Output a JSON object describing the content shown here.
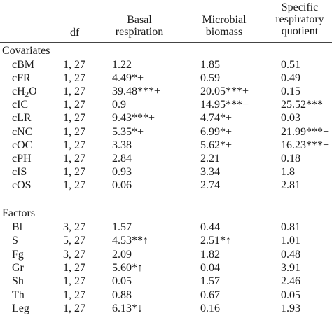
{
  "header": {
    "df": "df",
    "basal_line1": "Basal",
    "basal_line2": "respiration",
    "micro_line1": "Microbial",
    "micro_line2": "biomass",
    "sq_line1": "Specific",
    "sq_line2": "respiratory",
    "sq_line3": "quotient"
  },
  "sections": {
    "covariates": "Covariates",
    "factors": "Factors"
  },
  "covariates": [
    {
      "name": "cBM",
      "df": "1, 27",
      "br": "1.22",
      "mb": "1.85",
      "sq": "0.51"
    },
    {
      "name": "cFR",
      "df": "1, 27",
      "br": "4.49*+",
      "mb": "0.59",
      "sq": "0.49"
    },
    {
      "name": "cH",
      "name_sub": "2",
      "name_after": "O",
      "df": "1, 27",
      "br": "39.48***+",
      "mb": "20.05***+",
      "sq": "0.15"
    },
    {
      "name": "cIC",
      "df": "1, 27",
      "br": "0.9",
      "mb": "14.95***−",
      "sq": "25.52***+"
    },
    {
      "name": "cLR",
      "df": "1, 27",
      "br": "9.43***+",
      "mb": "4.74*+",
      "sq": "0.03"
    },
    {
      "name": "cNC",
      "df": "1, 27",
      "br": "5.35*+",
      "mb": "6.99*+",
      "sq": "21.99***−"
    },
    {
      "name": "cOC",
      "df": "1, 27",
      "br": "3.38",
      "mb": "5.62*+",
      "sq": "16.23***−"
    },
    {
      "name": "cPH",
      "df": "1, 27",
      "br": "2.84",
      "mb": "2.21",
      "sq": "0.18"
    },
    {
      "name": "cIS",
      "df": "1, 27",
      "br": "0.93",
      "mb": "3.34",
      "sq": "1.8"
    },
    {
      "name": "cOS",
      "df": "1, 27",
      "br": "0.06",
      "mb": "2.74",
      "sq": "2.81"
    }
  ],
  "factors": [
    {
      "name": "Bl",
      "df": "3, 27",
      "br": "1.57",
      "mb": "0.44",
      "sq": "0.81"
    },
    {
      "name": "S",
      "df": "5, 27",
      "br": "4.53**↑",
      "mb": "2.51*↑",
      "sq": "1.01"
    },
    {
      "name": "Fg",
      "df": "3, 27",
      "br": "2.09",
      "mb": "1.82",
      "sq": "0.48"
    },
    {
      "name": "Gr",
      "df": "1, 27",
      "br": "5.60*↑",
      "mb": "0.04",
      "sq": "3.91"
    },
    {
      "name": "Sh",
      "df": "1, 27",
      "br": "0.05",
      "mb": "1.57",
      "sq": "2.46"
    },
    {
      "name": "Th",
      "df": "1, 27",
      "br": "0.88",
      "mb": "0.67",
      "sq": "0.05"
    },
    {
      "name": "Leg",
      "df": "1, 27",
      "br": "6.13*↓",
      "mb": "0.16",
      "sq": "1.93"
    }
  ]
}
